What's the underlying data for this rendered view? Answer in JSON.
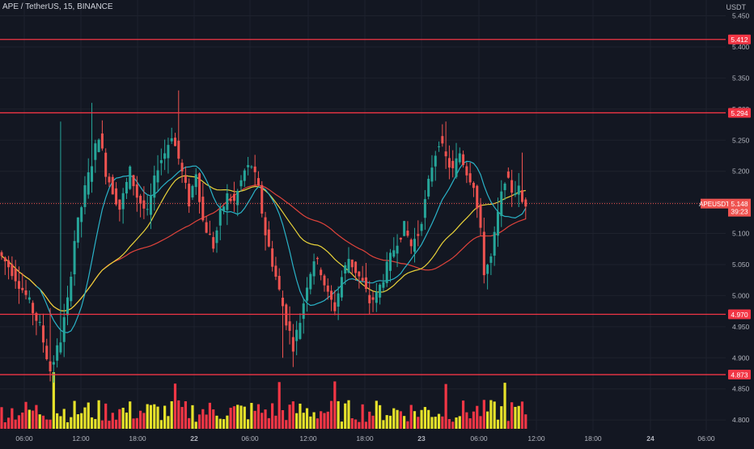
{
  "header": {
    "symbol": "APE / TetherUS",
    "interval": "15",
    "exchange": "BINANCE",
    "separator": ", "
  },
  "price_unit": "USDT",
  "colors": {
    "background": "#131722",
    "grid": "#1e222d",
    "up": "#26a69a",
    "down": "#ef5350",
    "level_line": "#f23645",
    "ma_red": "#e0433b",
    "ma_yellow": "#e9d33a",
    "ma_teal": "#2ab3c8",
    "vol_yellow": "#e6e22a",
    "vol_red": "#f23645",
    "axis_text": "#b2b5be"
  },
  "chart_data": {
    "type": "candlestick",
    "symbol": "APEUSDT",
    "current_price": "5.148",
    "countdown": "39:23",
    "y_axis": {
      "range": [
        4.795,
        5.465
      ],
      "ticks": [
        "5.450",
        "5.400",
        "5.350",
        "5.300",
        "5.250",
        "5.200",
        "5.150",
        "5.100",
        "5.050",
        "5.000",
        "4.950",
        "4.900",
        "4.850",
        "4.800"
      ]
    },
    "x_axis": {
      "ticks": [
        "06:00",
        "12:00",
        "18:00",
        "22",
        "06:00",
        "12:00",
        "18:00",
        "23",
        "06:00",
        "12:00",
        "18:00",
        "24",
        "06:00"
      ]
    },
    "levels": [
      "5.412",
      "5.294",
      "4.970",
      "4.873"
    ],
    "price_path": [
      [
        0,
        5.07
      ],
      [
        4,
        5.04
      ],
      [
        8,
        5.0
      ],
      [
        12,
        4.95
      ],
      [
        15,
        4.88
      ],
      [
        18,
        4.93
      ],
      [
        20,
        4.99
      ],
      [
        22,
        5.09
      ],
      [
        25,
        5.17
      ],
      [
        29,
        5.26
      ],
      [
        31,
        5.2
      ],
      [
        35,
        5.14
      ],
      [
        38,
        5.2
      ],
      [
        40,
        5.16
      ],
      [
        43,
        5.13
      ],
      [
        46,
        5.21
      ],
      [
        48,
        5.23
      ],
      [
        50,
        5.26
      ],
      [
        52,
        5.22
      ],
      [
        55,
        5.15
      ],
      [
        57,
        5.2
      ],
      [
        59,
        5.12
      ],
      [
        62,
        5.08
      ],
      [
        64,
        5.13
      ],
      [
        66,
        5.16
      ],
      [
        68,
        5.15
      ],
      [
        71,
        5.2
      ],
      [
        73,
        5.21
      ],
      [
        75,
        5.17
      ],
      [
        77,
        5.1
      ],
      [
        80,
        5.03
      ],
      [
        83,
        4.96
      ],
      [
        85,
        4.92
      ],
      [
        87,
        4.96
      ],
      [
        89,
        5.02
      ],
      [
        91,
        5.06
      ],
      [
        93,
        5.04
      ],
      [
        95,
        5.0
      ],
      [
        97,
        4.98
      ],
      [
        99,
        5.03
      ],
      [
        101,
        5.06
      ],
      [
        103,
        5.04
      ],
      [
        105,
        5.02
      ],
      [
        107,
        4.99
      ],
      [
        109,
        5.0
      ],
      [
        111,
        5.03
      ],
      [
        113,
        5.06
      ],
      [
        115,
        5.09
      ],
      [
        117,
        5.11
      ],
      [
        119,
        5.08
      ],
      [
        121,
        5.1
      ],
      [
        123,
        5.15
      ],
      [
        125,
        5.21
      ],
      [
        127,
        5.25
      ],
      [
        129,
        5.22
      ],
      [
        131,
        5.2
      ],
      [
        133,
        5.23
      ],
      [
        135,
        5.2
      ],
      [
        137,
        5.18
      ],
      [
        139,
        5.1
      ],
      [
        140,
        5.04
      ],
      [
        142,
        5.06
      ],
      [
        144,
        5.13
      ],
      [
        146,
        5.19
      ],
      [
        148,
        5.17
      ],
      [
        150,
        5.17
      ],
      [
        151,
        5.15
      ]
    ]
  }
}
